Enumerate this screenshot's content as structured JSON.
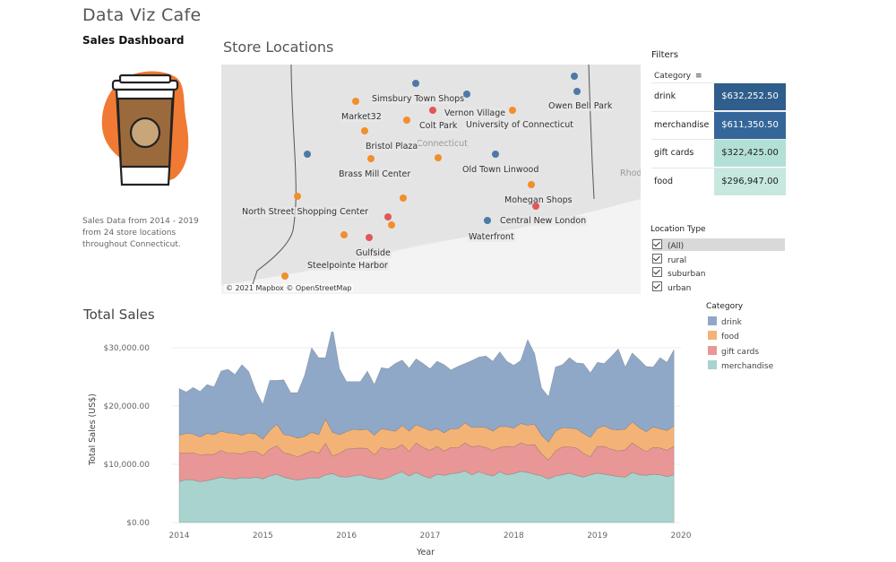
{
  "header": {
    "app_title": "Data Viz Cafe",
    "dashboard_title": "Sales Dashboard",
    "description": "Sales Data from 2014 - 2019 from 24 store locations throughout Connecticut."
  },
  "map": {
    "title": "Store Locations",
    "attribution": "© 2021 Mapbox © OpenStreetMap",
    "background_labels": [
      "Connecticut",
      "Rhod"
    ],
    "colors": {
      "rural": "#4e79a7",
      "suburban": "#f28e2b",
      "urban": "#e15759"
    },
    "stores": [
      {
        "name": "Simsbury Town Shops",
        "type": "rural"
      },
      {
        "name": "Vernon Village",
        "type": "urban"
      },
      {
        "name": "Market32",
        "type": "suburban"
      },
      {
        "name": "Colt Park",
        "type": "suburban"
      },
      {
        "name": "University of Connecticut",
        "type": "suburban"
      },
      {
        "name": "Owen Bell Park",
        "type": "rural"
      },
      {
        "name": "Bristol Plaza",
        "type": "suburban"
      },
      {
        "name": "Brass Mill Center",
        "type": "suburban"
      },
      {
        "name": "Old Town Linwood",
        "type": "rural"
      },
      {
        "name": "Mohegan Shops",
        "type": "suburban"
      },
      {
        "name": "North Street Shopping Center",
        "type": "suburban"
      },
      {
        "name": "Central New London",
        "type": "urban"
      },
      {
        "name": "Waterfront",
        "type": "rural"
      },
      {
        "name": "Gulfside",
        "type": "urban"
      },
      {
        "name": "Steelpointe Harbor",
        "type": "suburban"
      }
    ]
  },
  "filters": {
    "title": "Filters",
    "category_header": "Category",
    "categories": [
      {
        "name": "drink",
        "value": "$632,252.50",
        "color": "#2f5d8c",
        "text_color": "#ffffff"
      },
      {
        "name": "merchandise",
        "value": "$611,350.50",
        "color": "#34669a",
        "text_color": "#ffffff"
      },
      {
        "name": "gift cards",
        "value": "$322,425.00",
        "color": "#b3e0d6",
        "text_color": "#222222"
      },
      {
        "name": "food",
        "value": "$296,947.00",
        "color": "#c6e8df",
        "text_color": "#222222"
      }
    ],
    "location_type_title": "Location Type",
    "location_types": [
      {
        "label": "(All)",
        "checked": true
      },
      {
        "label": "rural",
        "checked": true
      },
      {
        "label": "suburban",
        "checked": true
      },
      {
        "label": "urban",
        "checked": true
      }
    ]
  },
  "total_sales": {
    "title": "Total Sales",
    "legend_title": "Category",
    "legend": [
      {
        "name": "drink",
        "color": "#8fa8c8"
      },
      {
        "name": "food",
        "color": "#f4b376"
      },
      {
        "name": "gift cards",
        "color": "#e99696"
      },
      {
        "name": "merchandise",
        "color": "#a8d3cf"
      }
    ]
  },
  "chart_data": {
    "type": "area",
    "stacked": true,
    "title": "Total Sales",
    "xlabel": "Year",
    "ylabel": "Total Sales (US$)",
    "xlim": [
      2014.0,
      2019.917
    ],
    "ylim": [
      0,
      32000
    ],
    "x_ticks": [
      "2014",
      "2015",
      "2016",
      "2017",
      "2018",
      "2019",
      "2020"
    ],
    "y_ticks": [
      "$0.00",
      "$10,000.00",
      "$20,000.00",
      "$30,000.00"
    ],
    "y_tick_values": [
      0,
      10000,
      20000,
      30000
    ],
    "x_start": "2014-01",
    "x_step": "month",
    "series": [
      {
        "name": "merchandise",
        "color": "#a8d3cf",
        "values": [
          7000,
          7400,
          7300,
          7000,
          7200,
          7500,
          7800,
          7600,
          7500,
          7700,
          7600,
          7800,
          7500,
          8000,
          8300,
          7800,
          7500,
          7300,
          7500,
          7700,
          7600,
          8200,
          8400,
          7900,
          7800,
          8000,
          8200,
          7800,
          7600,
          7400,
          7700,
          8300,
          8700,
          8000,
          8600,
          8000,
          7600,
          8300,
          8100,
          8400,
          8500,
          8900,
          8200,
          8700,
          8300,
          8000,
          8700,
          8200,
          8400,
          8800,
          8600,
          8300,
          8000,
          7500,
          8000,
          8200,
          8500,
          8100,
          7800,
          8200,
          8500,
          8300,
          8100,
          7900,
          7800,
          8600,
          8200,
          8100,
          8300,
          8200,
          7900,
          8200
        ]
      },
      {
        "name": "gift cards",
        "values": [
          5000,
          4500,
          4700,
          4600,
          4500,
          4200,
          4600,
          4300,
          4400,
          4100,
          4600,
          4400,
          4000,
          4600,
          4900,
          4200,
          4200,
          4000,
          4300,
          4600,
          4300,
          5400,
          3000,
          4000,
          4800,
          4700,
          4600,
          4900,
          4000,
          5500,
          4900,
          4400,
          4700,
          4200,
          5100,
          4900,
          4800,
          4800,
          4200,
          4500,
          4300,
          4800,
          4800,
          4500,
          4600,
          4400,
          4200,
          4900,
          4600,
          4900,
          4700,
          5100,
          3800,
          3200,
          4300,
          4800,
          4500,
          4700,
          4100,
          3100,
          4600,
          4800,
          4500,
          4400,
          4700,
          5100,
          4700,
          4100,
          4600,
          4600,
          4500,
          4900
        ]
      },
      {
        "name": "food",
        "values": [
          3000,
          3400,
          3200,
          3100,
          3600,
          3400,
          3300,
          3500,
          3400,
          3200,
          3200,
          3000,
          2800,
          3200,
          3700,
          3100,
          3200,
          3200,
          3000,
          3200,
          3200,
          4200,
          4100,
          3200,
          3000,
          3300,
          3100,
          3300,
          3400,
          3200,
          3300,
          3000,
          3300,
          3500,
          3100,
          3400,
          3400,
          3000,
          3100,
          3200,
          3300,
          3400,
          3300,
          3200,
          3400,
          3300,
          3600,
          3400,
          3200,
          3300,
          3400,
          3500,
          3200,
          3100,
          3400,
          3300,
          3200,
          3300,
          3400,
          3300,
          3100,
          3500,
          3400,
          3600,
          3500,
          3600,
          3400,
          3400,
          3500,
          3300,
          3400,
          3500
        ]
      },
      {
        "name": "drink",
        "values": [
          8000,
          7100,
          8000,
          7800,
          8400,
          8200,
          10300,
          10900,
          10100,
          12100,
          10500,
          7400,
          6000,
          8600,
          7500,
          9400,
          7400,
          7800,
          10500,
          14500,
          13200,
          10500,
          18000,
          11300,
          8600,
          8200,
          8300,
          10000,
          8700,
          10500,
          10500,
          11600,
          11200,
          10800,
          11300,
          11000,
          10600,
          11600,
          11700,
          10100,
          10700,
          10200,
          11500,
          12000,
          12300,
          12000,
          12800,
          11200,
          10800,
          10800,
          14700,
          12100,
          8100,
          7800,
          11000,
          10800,
          12100,
          11300,
          12000,
          11100,
          11300,
          10700,
          12500,
          13900,
          10700,
          11800,
          11700,
          11200,
          10300,
          12200,
          11700,
          13100
        ]
      }
    ]
  }
}
